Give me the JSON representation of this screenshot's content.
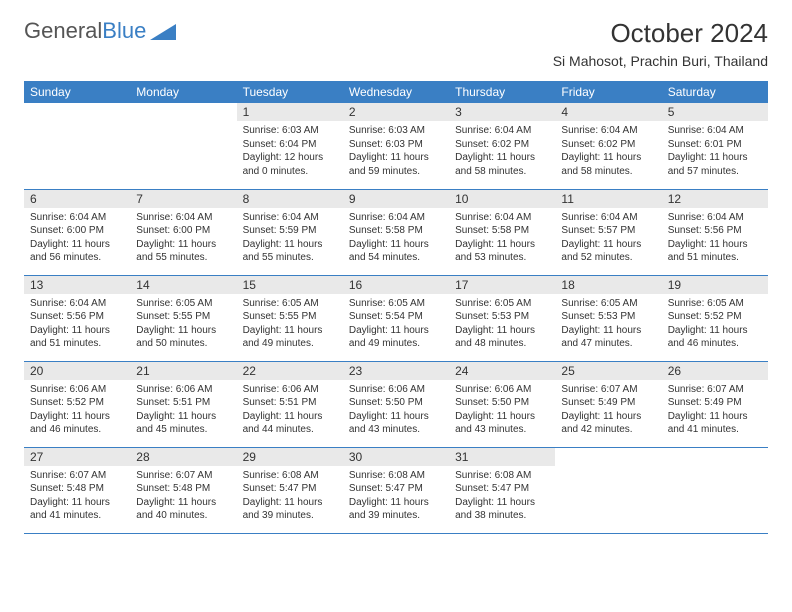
{
  "logo": {
    "text_gray": "General",
    "text_blue": "Blue"
  },
  "title": "October 2024",
  "location": "Si Mahosot, Prachin Buri, Thailand",
  "colors": {
    "header_bg": "#3a7fc4",
    "header_text": "#ffffff",
    "daynum_bg": "#e9e9e9",
    "row_divider": "#3a7fc4",
    "logo_gray": "#555555",
    "logo_blue": "#3a7fc4",
    "body_text": "#333333",
    "background": "#ffffff"
  },
  "typography": {
    "title_fontsize": 26,
    "location_fontsize": 14,
    "dayheader_fontsize": 12,
    "daynum_fontsize": 12,
    "cell_fontsize": 10,
    "font_family": "Arial"
  },
  "day_headers": [
    "Sunday",
    "Monday",
    "Tuesday",
    "Wednesday",
    "Thursday",
    "Friday",
    "Saturday"
  ],
  "weeks": [
    [
      null,
      null,
      {
        "n": "1",
        "sr": "Sunrise: 6:03 AM",
        "ss": "Sunset: 6:04 PM",
        "dl": "Daylight: 12 hours and 0 minutes."
      },
      {
        "n": "2",
        "sr": "Sunrise: 6:03 AM",
        "ss": "Sunset: 6:03 PM",
        "dl": "Daylight: 11 hours and 59 minutes."
      },
      {
        "n": "3",
        "sr": "Sunrise: 6:04 AM",
        "ss": "Sunset: 6:02 PM",
        "dl": "Daylight: 11 hours and 58 minutes."
      },
      {
        "n": "4",
        "sr": "Sunrise: 6:04 AM",
        "ss": "Sunset: 6:02 PM",
        "dl": "Daylight: 11 hours and 58 minutes."
      },
      {
        "n": "5",
        "sr": "Sunrise: 6:04 AM",
        "ss": "Sunset: 6:01 PM",
        "dl": "Daylight: 11 hours and 57 minutes."
      }
    ],
    [
      {
        "n": "6",
        "sr": "Sunrise: 6:04 AM",
        "ss": "Sunset: 6:00 PM",
        "dl": "Daylight: 11 hours and 56 minutes."
      },
      {
        "n": "7",
        "sr": "Sunrise: 6:04 AM",
        "ss": "Sunset: 6:00 PM",
        "dl": "Daylight: 11 hours and 55 minutes."
      },
      {
        "n": "8",
        "sr": "Sunrise: 6:04 AM",
        "ss": "Sunset: 5:59 PM",
        "dl": "Daylight: 11 hours and 55 minutes."
      },
      {
        "n": "9",
        "sr": "Sunrise: 6:04 AM",
        "ss": "Sunset: 5:58 PM",
        "dl": "Daylight: 11 hours and 54 minutes."
      },
      {
        "n": "10",
        "sr": "Sunrise: 6:04 AM",
        "ss": "Sunset: 5:58 PM",
        "dl": "Daylight: 11 hours and 53 minutes."
      },
      {
        "n": "11",
        "sr": "Sunrise: 6:04 AM",
        "ss": "Sunset: 5:57 PM",
        "dl": "Daylight: 11 hours and 52 minutes."
      },
      {
        "n": "12",
        "sr": "Sunrise: 6:04 AM",
        "ss": "Sunset: 5:56 PM",
        "dl": "Daylight: 11 hours and 51 minutes."
      }
    ],
    [
      {
        "n": "13",
        "sr": "Sunrise: 6:04 AM",
        "ss": "Sunset: 5:56 PM",
        "dl": "Daylight: 11 hours and 51 minutes."
      },
      {
        "n": "14",
        "sr": "Sunrise: 6:05 AM",
        "ss": "Sunset: 5:55 PM",
        "dl": "Daylight: 11 hours and 50 minutes."
      },
      {
        "n": "15",
        "sr": "Sunrise: 6:05 AM",
        "ss": "Sunset: 5:55 PM",
        "dl": "Daylight: 11 hours and 49 minutes."
      },
      {
        "n": "16",
        "sr": "Sunrise: 6:05 AM",
        "ss": "Sunset: 5:54 PM",
        "dl": "Daylight: 11 hours and 49 minutes."
      },
      {
        "n": "17",
        "sr": "Sunrise: 6:05 AM",
        "ss": "Sunset: 5:53 PM",
        "dl": "Daylight: 11 hours and 48 minutes."
      },
      {
        "n": "18",
        "sr": "Sunrise: 6:05 AM",
        "ss": "Sunset: 5:53 PM",
        "dl": "Daylight: 11 hours and 47 minutes."
      },
      {
        "n": "19",
        "sr": "Sunrise: 6:05 AM",
        "ss": "Sunset: 5:52 PM",
        "dl": "Daylight: 11 hours and 46 minutes."
      }
    ],
    [
      {
        "n": "20",
        "sr": "Sunrise: 6:06 AM",
        "ss": "Sunset: 5:52 PM",
        "dl": "Daylight: 11 hours and 46 minutes."
      },
      {
        "n": "21",
        "sr": "Sunrise: 6:06 AM",
        "ss": "Sunset: 5:51 PM",
        "dl": "Daylight: 11 hours and 45 minutes."
      },
      {
        "n": "22",
        "sr": "Sunrise: 6:06 AM",
        "ss": "Sunset: 5:51 PM",
        "dl": "Daylight: 11 hours and 44 minutes."
      },
      {
        "n": "23",
        "sr": "Sunrise: 6:06 AM",
        "ss": "Sunset: 5:50 PM",
        "dl": "Daylight: 11 hours and 43 minutes."
      },
      {
        "n": "24",
        "sr": "Sunrise: 6:06 AM",
        "ss": "Sunset: 5:50 PM",
        "dl": "Daylight: 11 hours and 43 minutes."
      },
      {
        "n": "25",
        "sr": "Sunrise: 6:07 AM",
        "ss": "Sunset: 5:49 PM",
        "dl": "Daylight: 11 hours and 42 minutes."
      },
      {
        "n": "26",
        "sr": "Sunrise: 6:07 AM",
        "ss": "Sunset: 5:49 PM",
        "dl": "Daylight: 11 hours and 41 minutes."
      }
    ],
    [
      {
        "n": "27",
        "sr": "Sunrise: 6:07 AM",
        "ss": "Sunset: 5:48 PM",
        "dl": "Daylight: 11 hours and 41 minutes."
      },
      {
        "n": "28",
        "sr": "Sunrise: 6:07 AM",
        "ss": "Sunset: 5:48 PM",
        "dl": "Daylight: 11 hours and 40 minutes."
      },
      {
        "n": "29",
        "sr": "Sunrise: 6:08 AM",
        "ss": "Sunset: 5:47 PM",
        "dl": "Daylight: 11 hours and 39 minutes."
      },
      {
        "n": "30",
        "sr": "Sunrise: 6:08 AM",
        "ss": "Sunset: 5:47 PM",
        "dl": "Daylight: 11 hours and 39 minutes."
      },
      {
        "n": "31",
        "sr": "Sunrise: 6:08 AM",
        "ss": "Sunset: 5:47 PM",
        "dl": "Daylight: 11 hours and 38 minutes."
      },
      null,
      null
    ]
  ]
}
